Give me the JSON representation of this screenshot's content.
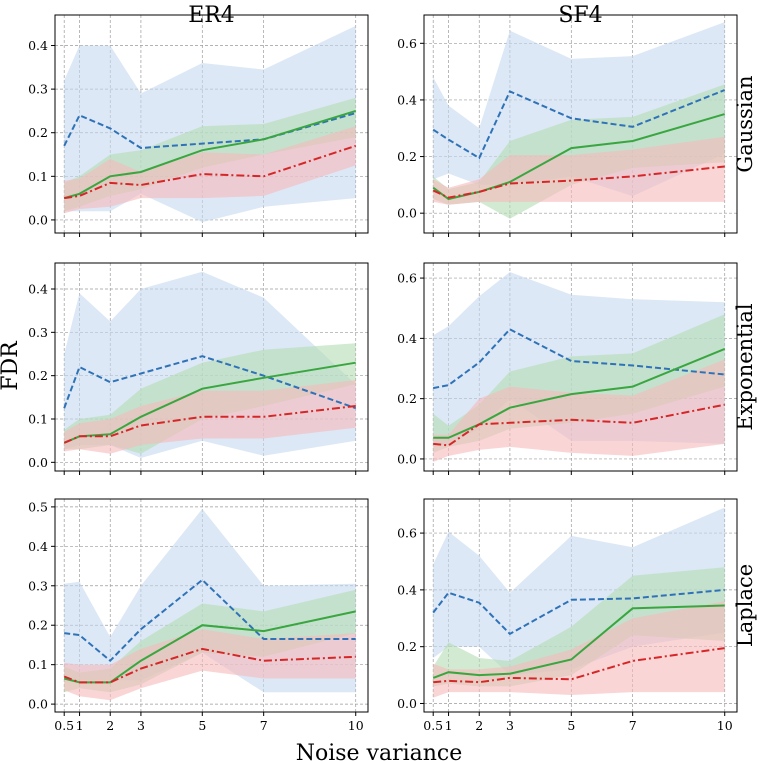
{
  "chart_data": {
    "type": "line",
    "layout": "3x2 grid of line plots with shaded bands",
    "column_titles": [
      "ER4",
      "SF4"
    ],
    "row_labels": [
      "Gaussian",
      "Exponential",
      "Laplace"
    ],
    "xlabel": "Noise variance",
    "ylabel": "FDR",
    "x": [
      0.5,
      1,
      2,
      3,
      5,
      7,
      10
    ],
    "x_tick_labels": [
      "0.5",
      "1",
      "2",
      "3",
      "5",
      "7",
      "10"
    ],
    "xlim": [
      0.2,
      10.4
    ],
    "series_styles": [
      {
        "name": "series-blue",
        "color": "#2f72b8",
        "band_color": "#c5d9ee",
        "dash": "6 3"
      },
      {
        "name": "series-green",
        "color": "#3aa640",
        "band_color": "#b4dcb4",
        "dash": ""
      },
      {
        "name": "series-red",
        "color": "#d62728",
        "band_color": "#f6b9bb",
        "dash": "8 3 2 3"
      }
    ],
    "panels": [
      {
        "row": 0,
        "col": 0,
        "column_title": "ER4",
        "row_label": "",
        "ylim": [
          -0.03,
          0.47
        ],
        "yticks": [
          0.0,
          0.1,
          0.2,
          0.3,
          0.4
        ],
        "ytick_labels": [
          "0.0",
          "0.1",
          "0.2",
          "0.3",
          "0.4"
        ],
        "show_xtick_labels": false,
        "series": [
          {
            "name": "series-blue",
            "values": [
              0.17,
              0.24,
              0.21,
              0.165,
              0.175,
              0.185,
              0.245
            ],
            "lower": [
              0.02,
              0.02,
              0.02,
              0.06,
              -0.005,
              0.03,
              0.05
            ],
            "upper": [
              0.32,
              0.4,
              0.4,
              0.29,
              0.36,
              0.345,
              0.445
            ]
          },
          {
            "name": "series-green",
            "values": [
              0.05,
              0.06,
              0.1,
              0.11,
              0.16,
              0.185,
              0.25
            ],
            "lower": [
              0.02,
              0.03,
              0.055,
              0.07,
              0.12,
              0.15,
              0.19
            ],
            "upper": [
              0.085,
              0.1,
              0.15,
              0.16,
              0.215,
              0.22,
              0.28
            ]
          },
          {
            "name": "series-red",
            "values": [
              0.05,
              0.055,
              0.085,
              0.08,
              0.105,
              0.1,
              0.17
            ],
            "lower": [
              0.015,
              0.025,
              0.03,
              0.05,
              0.05,
              0.055,
              0.125
            ],
            "upper": [
              0.09,
              0.095,
              0.14,
              0.11,
              0.155,
              0.15,
              0.215
            ]
          }
        ]
      },
      {
        "row": 0,
        "col": 1,
        "column_title": "SF4",
        "row_label": "Gaussian",
        "ylim": [
          -0.07,
          0.7
        ],
        "yticks": [
          0.0,
          0.2,
          0.4,
          0.6
        ],
        "ytick_labels": [
          "0.0",
          "0.2",
          "0.4",
          "0.6"
        ],
        "show_xtick_labels": false,
        "series": [
          {
            "name": "series-blue",
            "values": [
              0.295,
              0.26,
              0.195,
              0.43,
              0.335,
              0.305,
              0.435
            ],
            "lower": [
              0.12,
              0.14,
              0.1,
              0.1,
              0.13,
              0.06,
              0.21
            ],
            "upper": [
              0.48,
              0.38,
              0.3,
              0.645,
              0.545,
              0.555,
              0.675
            ]
          },
          {
            "name": "series-green",
            "values": [
              0.09,
              0.05,
              0.075,
              0.11,
              0.23,
              0.255,
              0.35
            ],
            "lower": [
              0.05,
              0.03,
              0.04,
              -0.02,
              0.1,
              0.16,
              0.18
            ],
            "upper": [
              0.13,
              0.085,
              0.11,
              0.255,
              0.33,
              0.34,
              0.455
            ]
          },
          {
            "name": "series-red",
            "values": [
              0.08,
              0.055,
              0.075,
              0.105,
              0.115,
              0.13,
              0.165
            ],
            "lower": [
              0.04,
              0.03,
              0.04,
              0.04,
              0.04,
              0.04,
              0.04
            ],
            "upper": [
              0.12,
              0.09,
              0.12,
              0.205,
              0.205,
              0.225,
              0.27
            ]
          }
        ]
      },
      {
        "row": 1,
        "col": 0,
        "column_title": "",
        "row_label": "",
        "ylim": [
          -0.02,
          0.46
        ],
        "yticks": [
          0.0,
          0.1,
          0.2,
          0.3,
          0.4
        ],
        "ytick_labels": [
          "0.0",
          "0.1",
          "0.2",
          "0.3",
          "0.4"
        ],
        "show_xtick_labels": false,
        "series": [
          {
            "name": "series-blue",
            "values": [
              0.125,
              0.22,
              0.185,
              0.205,
              0.245,
              0.2,
              0.125
            ],
            "lower": [
              0.03,
              0.04,
              0.04,
              0.01,
              0.05,
              0.015,
              0.05
            ],
            "upper": [
              0.25,
              0.39,
              0.325,
              0.4,
              0.44,
              0.38,
              0.18
            ]
          },
          {
            "name": "series-green",
            "values": [
              0.045,
              0.06,
              0.065,
              0.105,
              0.17,
              0.195,
              0.23
            ],
            "lower": [
              0.03,
              0.03,
              0.04,
              0.02,
              0.1,
              0.13,
              0.18
            ],
            "upper": [
              0.075,
              0.1,
              0.11,
              0.17,
              0.23,
              0.26,
              0.275
            ]
          },
          {
            "name": "series-red",
            "values": [
              0.045,
              0.06,
              0.06,
              0.085,
              0.105,
              0.105,
              0.13
            ],
            "lower": [
              0.025,
              0.03,
              0.02,
              0.04,
              0.055,
              0.055,
              0.08
            ],
            "upper": [
              0.07,
              0.09,
              0.1,
              0.13,
              0.165,
              0.165,
              0.19
            ]
          }
        ]
      },
      {
        "row": 1,
        "col": 1,
        "column_title": "",
        "row_label": "Exponential",
        "ylim": [
          -0.04,
          0.65
        ],
        "yticks": [
          0.0,
          0.2,
          0.4,
          0.6
        ],
        "ytick_labels": [
          "0.0",
          "0.2",
          "0.4",
          "0.6"
        ],
        "show_xtick_labels": false,
        "series": [
          {
            "name": "series-blue",
            "values": [
              0.235,
              0.245,
              0.32,
              0.43,
              0.325,
              0.31,
              0.28
            ],
            "lower": [
              0.04,
              0.05,
              0.1,
              0.2,
              0.06,
              0.06,
              0.05
            ],
            "upper": [
              0.41,
              0.44,
              0.54,
              0.62,
              0.545,
              0.53,
              0.52
            ]
          },
          {
            "name": "series-green",
            "values": [
              0.07,
              0.07,
              0.115,
              0.17,
              0.215,
              0.24,
              0.365
            ],
            "lower": [
              0.02,
              0.04,
              0.06,
              0.1,
              0.12,
              0.15,
              0.24
            ],
            "upper": [
              0.15,
              0.11,
              0.18,
              0.29,
              0.34,
              0.35,
              0.48
            ]
          },
          {
            "name": "series-red",
            "values": [
              0.05,
              0.045,
              0.115,
              0.12,
              0.13,
              0.12,
              0.18
            ],
            "lower": [
              -0.01,
              0.01,
              0.03,
              0.04,
              0.02,
              0.01,
              0.05
            ],
            "upper": [
              0.08,
              0.08,
              0.2,
              0.24,
              0.22,
              0.21,
              0.33
            ]
          }
        ]
      },
      {
        "row": 2,
        "col": 0,
        "column_title": "",
        "row_label": "",
        "ylim": [
          -0.02,
          0.52
        ],
        "yticks": [
          0.0,
          0.1,
          0.2,
          0.3,
          0.4,
          0.5
        ],
        "ytick_labels": [
          "0.0",
          "0.1",
          "0.2",
          "0.3",
          "0.4",
          "0.5"
        ],
        "show_xtick_labels": true,
        "series": [
          {
            "name": "series-blue",
            "values": [
              0.18,
              0.175,
              0.11,
              0.19,
              0.315,
              0.165,
              0.165
            ],
            "lower": [
              0.06,
              0.06,
              0.06,
              0.06,
              0.13,
              0.03,
              0.03
            ],
            "upper": [
              0.305,
              0.31,
              0.17,
              0.3,
              0.495,
              0.3,
              0.305
            ]
          },
          {
            "name": "series-green",
            "values": [
              0.065,
              0.055,
              0.055,
              0.11,
              0.2,
              0.185,
              0.235
            ],
            "lower": [
              0.03,
              0.04,
              0.03,
              0.05,
              0.13,
              0.12,
              0.18
            ],
            "upper": [
              0.095,
              0.08,
              0.09,
              0.16,
              0.255,
              0.235,
              0.29
            ]
          },
          {
            "name": "series-red",
            "values": [
              0.07,
              0.055,
              0.055,
              0.09,
              0.14,
              0.11,
              0.12
            ],
            "lower": [
              0.035,
              0.02,
              0.01,
              0.04,
              0.085,
              0.065,
              0.065
            ],
            "upper": [
              0.105,
              0.1,
              0.1,
              0.14,
              0.19,
              0.165,
              0.18
            ]
          }
        ]
      },
      {
        "row": 2,
        "col": 1,
        "column_title": "",
        "row_label": "Laplace",
        "ylim": [
          -0.03,
          0.72
        ],
        "yticks": [
          0.0,
          0.2,
          0.4,
          0.6
        ],
        "ytick_labels": [
          "0.0",
          "0.2",
          "0.4",
          "0.6"
        ],
        "show_xtick_labels": true,
        "series": [
          {
            "name": "series-blue",
            "values": [
              0.32,
              0.39,
              0.355,
              0.245,
              0.365,
              0.37,
              0.4
            ],
            "lower": [
              0.16,
              0.2,
              0.2,
              0.1,
              0.12,
              0.2,
              0.25
            ],
            "upper": [
              0.49,
              0.605,
              0.52,
              0.39,
              0.59,
              0.55,
              0.69
            ]
          },
          {
            "name": "series-green",
            "values": [
              0.09,
              0.11,
              0.1,
              0.105,
              0.155,
              0.335,
              0.345
            ],
            "lower": [
              0.06,
              0.07,
              0.06,
              0.06,
              0.1,
              0.24,
              0.22
            ],
            "upper": [
              0.13,
              0.215,
              0.16,
              0.15,
              0.27,
              0.45,
              0.48
            ]
          },
          {
            "name": "series-red",
            "values": [
              0.075,
              0.08,
              0.075,
              0.09,
              0.085,
              0.15,
              0.195
            ],
            "lower": [
              0.02,
              0.04,
              0.04,
              0.04,
              0.03,
              0.04,
              0.04
            ],
            "upper": [
              0.14,
              0.12,
              0.12,
              0.13,
              0.19,
              0.3,
              0.36
            ]
          }
        ]
      }
    ]
  }
}
